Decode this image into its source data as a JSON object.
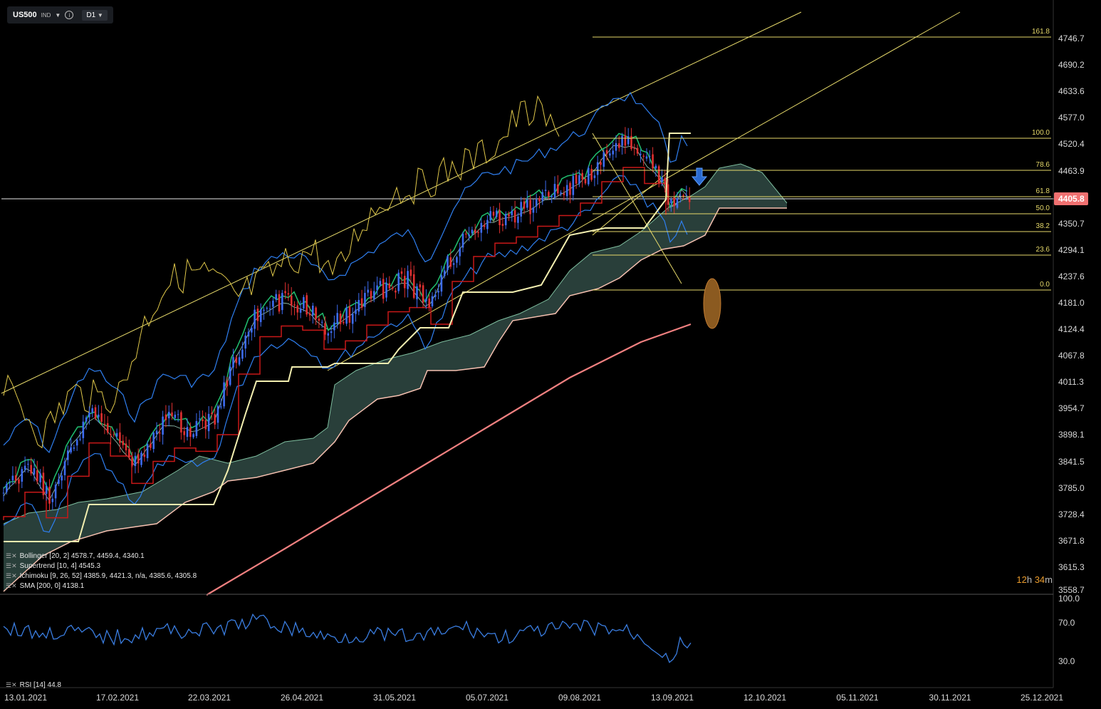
{
  "toolbar": {
    "symbol": "US500",
    "class": "IND",
    "timeframe": "D1"
  },
  "price_axis": {
    "ticks": [
      "4746.7",
      "4690.2",
      "4633.6",
      "4577.0",
      "4520.4",
      "4463.9",
      "4350.7",
      "4294.1",
      "4237.6",
      "4181.0",
      "4124.4",
      "4067.8",
      "4011.3",
      "3954.7",
      "3898.1",
      "3841.5",
      "3785.0",
      "3728.4",
      "3671.8",
      "3615.3",
      "3558.7"
    ],
    "current": "4405.8",
    "current_color": "#f07070"
  },
  "fib": {
    "labels": [
      "161.8",
      "100.0",
      "78.6",
      "61.8",
      "50.0",
      "38.2",
      "23.6",
      "0.0"
    ],
    "color": "#e6d96a"
  },
  "rsi_axis": {
    "ticks": [
      "100.0",
      "70.0",
      "30.0"
    ]
  },
  "time_axis": {
    "labels": [
      "13.01.2021",
      "17.02.2021",
      "22.03.2021",
      "26.04.2021",
      "31.05.2021",
      "05.07.2021",
      "09.08.2021",
      "13.09.2021",
      "12.10.2021",
      "05.11.2021",
      "30.11.2021",
      "25.12.2021"
    ]
  },
  "indicators": {
    "bollinger": "Bollinger  [20, 2]  4578.7,  4459.4,  4340.1",
    "supertrend": "Supertrend  [10, 4]  4545.3",
    "ichimoku": "Ichimoku  [9, 26, 52]  4385.9,  4421.3,  n/a,  4385.6,  4305.8",
    "sma": "SMA  [200, 0]  4138.1",
    "rsi": "RSI [14]  44.8"
  },
  "timer": {
    "hours": "12",
    "h": "h",
    "minutes": "34",
    "m": "m"
  },
  "colors": {
    "up": "#3d6cf0",
    "down": "#e03030",
    "bollinger": "#2f7ff0",
    "supertrend": "#f3efb0",
    "cloud": "#2e4640",
    "sma": "#f08080",
    "rsi": "#3a7de0",
    "channel": "#e6d96a",
    "tenkan": "#20c070",
    "kijun": "#c81818"
  },
  "chart_data": {
    "type": "candlestick",
    "instrument": "US500",
    "timeframe": "D1",
    "y_range": [
      3558.7,
      4760
    ],
    "current_price": 4405.8,
    "fibonacci": [
      {
        "level": "161.8",
        "price": 4746.7
      },
      {
        "level": "100.0",
        "price": 4545
      },
      {
        "level": "78.6",
        "price": 4471
      },
      {
        "level": "61.8",
        "price": 4415
      },
      {
        "level": "50.0",
        "price": 4375
      },
      {
        "level": "38.2",
        "price": 4350
      },
      {
        "level": "23.6",
        "price": 4294
      },
      {
        "level": "0.0",
        "price": 4237
      }
    ],
    "rsi_last": 44.8,
    "sma200_last": 4138.1
  }
}
